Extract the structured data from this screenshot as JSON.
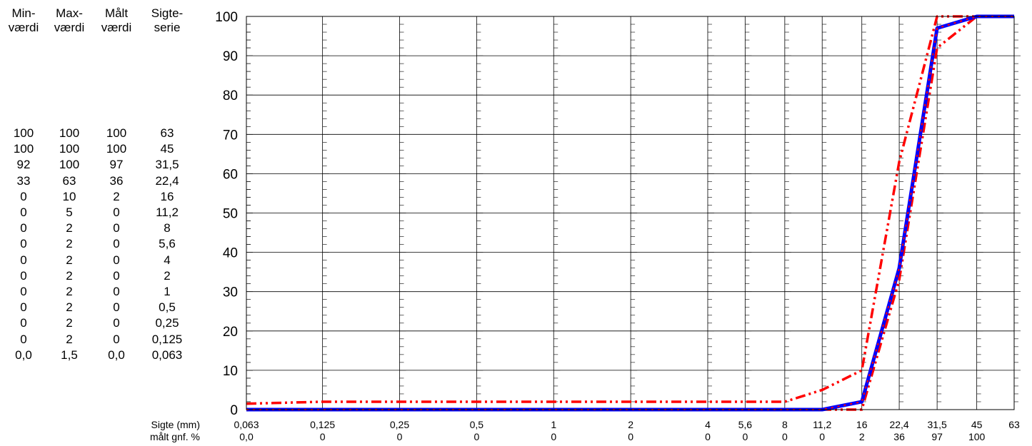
{
  "table": {
    "headers": [
      [
        "Min-",
        "værdi"
      ],
      [
        "Max-",
        "værdi"
      ],
      [
        "Målt",
        "værdi"
      ],
      [
        "Sigte-",
        "serie"
      ]
    ],
    "rows": [
      [
        "100",
        "100",
        "100",
        "63"
      ],
      [
        "100",
        "100",
        "100",
        "45"
      ],
      [
        "92",
        "100",
        "97",
        "31,5"
      ],
      [
        "33",
        "63",
        "36",
        "22,4"
      ],
      [
        "0",
        "10",
        "2",
        "16"
      ],
      [
        "0",
        "5",
        "0",
        "11,2"
      ],
      [
        "0",
        "2",
        "0",
        "8"
      ],
      [
        "0",
        "2",
        "0",
        "5,6"
      ],
      [
        "0",
        "2",
        "0",
        "4"
      ],
      [
        "0",
        "2",
        "0",
        "2"
      ],
      [
        "0",
        "2",
        "0",
        "1"
      ],
      [
        "0",
        "2",
        "0",
        "0,5"
      ],
      [
        "0",
        "2",
        "0",
        "0,25"
      ],
      [
        "0",
        "2",
        "0",
        "0,125"
      ],
      [
        "0,0",
        "1,5",
        "0,0",
        "0,063"
      ]
    ]
  },
  "chart_data": {
    "type": "line",
    "x_label": "Sigte (mm)",
    "x2_label": "målt gnf. %",
    "categories": [
      "0,063",
      "0,125",
      "0,25",
      "0,5",
      "1",
      "2",
      "4",
      "5,6",
      "8",
      "11,2",
      "16",
      "22,4",
      "31,5",
      "45",
      "63"
    ],
    "x_values": [
      0.063,
      0.125,
      0.25,
      0.5,
      1,
      2,
      4,
      5.6,
      8,
      11.2,
      16,
      22.4,
      31.5,
      45,
      63
    ],
    "x_scale": "log",
    "second_row_labels": [
      "0,0",
      "0",
      "0",
      "0",
      "0",
      "0",
      "0",
      "0",
      "0",
      "0",
      "2",
      "36",
      "97",
      "100",
      ""
    ],
    "y_ticks": [
      "0",
      "10",
      "20",
      "30",
      "40",
      "50",
      "60",
      "70",
      "80",
      "90",
      "100"
    ],
    "ylim": [
      0,
      100
    ],
    "grid": true,
    "series": [
      {
        "values": [
          0,
          0,
          0,
          0,
          0,
          0,
          0,
          0,
          0,
          0,
          2,
          36,
          97,
          100,
          100
        ],
        "color": "#0000ff",
        "style": "solid"
      },
      {
        "values": [
          1.5,
          2,
          2,
          2,
          2,
          2,
          2,
          2,
          2,
          5,
          10,
          63,
          100,
          100,
          100
        ],
        "color": "#ff0000",
        "style": "dash-dot-dot"
      },
      {
        "values": [
          0,
          0,
          0,
          0,
          0,
          0,
          0,
          0,
          0,
          0,
          0,
          33,
          92,
          100,
          100
        ],
        "color": "#ff0000",
        "style": "dash-dot-dot"
      }
    ]
  }
}
